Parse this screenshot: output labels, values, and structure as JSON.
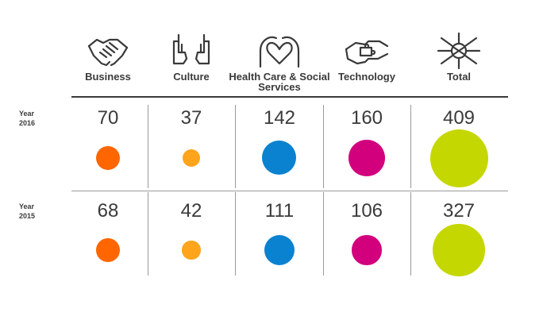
{
  "chart_data": {
    "type": "table",
    "categories": [
      {
        "label": "Business",
        "icon": "handshake-icon"
      },
      {
        "label": "Culture",
        "icon": "hands-frame-icon"
      },
      {
        "label": "Health Care & Social Services",
        "icon": "hands-heart-icon"
      },
      {
        "label": "Technology",
        "icon": "puzzle-hands-icon"
      },
      {
        "label": "Total",
        "icon": "stacked-hands-icon"
      }
    ],
    "series": [
      {
        "name": "Year 2016",
        "values": [
          70,
          37,
          142,
          160,
          409
        ]
      },
      {
        "name": "Year 2015",
        "values": [
          68,
          42,
          111,
          106,
          327
        ]
      }
    ],
    "colors": [
      "#ff6600",
      "#ffa41b",
      "#0a82d0",
      "#d2007d",
      "#c5d700"
    ],
    "dot_size_encodes": "value"
  }
}
